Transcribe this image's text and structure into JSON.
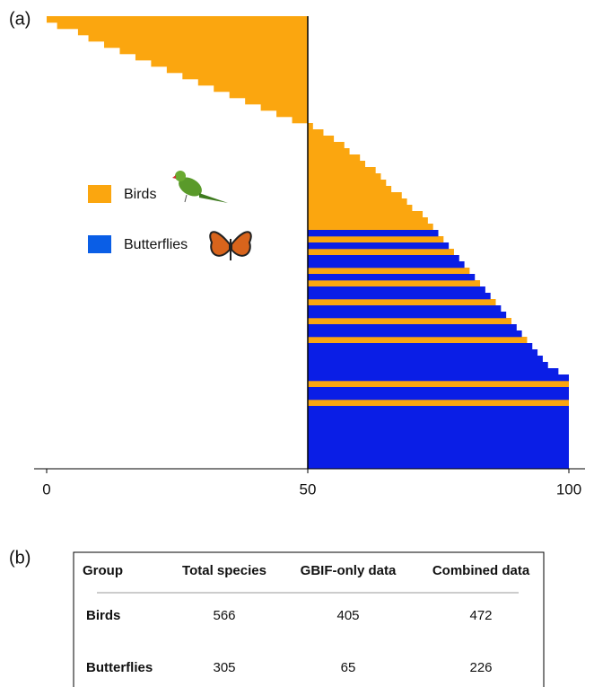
{
  "chart_data": {
    "type": "diverging-bar",
    "panel_label": "(a)",
    "xlim": [
      0,
      100
    ],
    "xticks": [
      0,
      50,
      100
    ],
    "center": 50,
    "series": [
      {
        "name": "Birds",
        "color": "#fba60f",
        "values": [
          0,
          2,
          6,
          8,
          11,
          14,
          17,
          20,
          23,
          26,
          29,
          32,
          35,
          38,
          41,
          44,
          47,
          51,
          53,
          55,
          57,
          58,
          60,
          61,
          63,
          64,
          65,
          66,
          68,
          69,
          70,
          72,
          73,
          74,
          null,
          76,
          null,
          78,
          null,
          null,
          81,
          null,
          83,
          null,
          null,
          86,
          null,
          null,
          89,
          null,
          null,
          92,
          null,
          null,
          null,
          null,
          null,
          null,
          100,
          null,
          null,
          100,
          null,
          null,
          null,
          null,
          null,
          null,
          null,
          null,
          null,
          null
        ]
      },
      {
        "name": "Butterflies",
        "color": "#0a1ee6",
        "values": [
          null,
          null,
          null,
          null,
          null,
          null,
          null,
          null,
          null,
          null,
          null,
          null,
          null,
          null,
          null,
          null,
          null,
          null,
          null,
          null,
          null,
          null,
          null,
          null,
          null,
          null,
          null,
          null,
          null,
          null,
          null,
          null,
          null,
          null,
          75,
          null,
          77,
          null,
          79,
          80,
          null,
          82,
          null,
          84,
          85,
          null,
          87,
          88,
          null,
          90,
          91,
          null,
          93,
          94,
          95,
          96,
          98,
          100,
          null,
          100,
          100,
          null,
          100,
          100,
          100,
          100,
          100,
          100,
          100,
          100,
          100,
          100
        ]
      }
    ]
  },
  "table": {
    "panel_label": "(b)",
    "columns": [
      "Group",
      "Total species",
      "GBIF-only data",
      "Combined data"
    ],
    "rows": [
      [
        "Birds",
        "566",
        "405",
        "472"
      ],
      [
        "Butterflies",
        "305",
        "65",
        "226"
      ]
    ]
  }
}
